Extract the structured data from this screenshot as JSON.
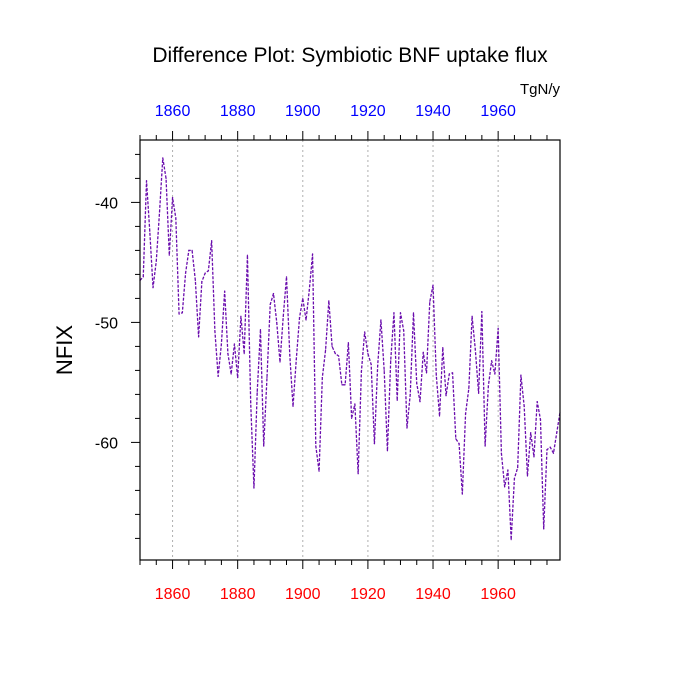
{
  "chart_data": {
    "type": "line",
    "title": "Difference Plot: Symbiotic BNF uptake flux",
    "units": "TgN/y",
    "ylabel": "NFIX",
    "xlabel": "",
    "xlim": [
      1850,
      1979
    ],
    "ylim": [
      -69.8,
      -34.8
    ],
    "grid": "vertical dotted lines at major x ticks",
    "x_ticks": [
      1860,
      1880,
      1900,
      1920,
      1940,
      1960
    ],
    "x_tick_labels": [
      "1860",
      "1880",
      "1900",
      "1920",
      "1940",
      "1960"
    ],
    "y_ticks": [
      -40,
      -50,
      -60
    ],
    "y_tick_labels": [
      "-40",
      "-50",
      "-60"
    ],
    "top_axis_color": "#0000ff",
    "bottom_axis_color": "#ff0000",
    "series": [
      {
        "color": "#6a0dad",
        "line_style": "dashed",
        "x": [
          1850,
          1851,
          1852,
          1853,
          1854,
          1855,
          1856,
          1857,
          1858,
          1859,
          1860,
          1861,
          1862,
          1863,
          1864,
          1865,
          1866,
          1867,
          1868,
          1869,
          1870,
          1871,
          1872,
          1873,
          1874,
          1875,
          1876,
          1877,
          1878,
          1879,
          1880,
          1881,
          1882,
          1883,
          1884,
          1885,
          1886,
          1887,
          1888,
          1889,
          1890,
          1891,
          1892,
          1893,
          1894,
          1895,
          1896,
          1897,
          1898,
          1899,
          1900,
          1901,
          1902,
          1903,
          1904,
          1905,
          1906,
          1907,
          1908,
          1909,
          1910,
          1911,
          1912,
          1913,
          1914,
          1915,
          1916,
          1917,
          1918,
          1919,
          1920,
          1921,
          1922,
          1923,
          1924,
          1925,
          1926,
          1927,
          1928,
          1929,
          1930,
          1931,
          1932,
          1933,
          1934,
          1935,
          1936,
          1937,
          1938,
          1939,
          1940,
          1941,
          1942,
          1943,
          1944,
          1945,
          1946,
          1947,
          1948,
          1949,
          1950,
          1951,
          1952,
          1953,
          1954,
          1955,
          1956,
          1957,
          1958,
          1959,
          1960,
          1961,
          1962,
          1963,
          1964,
          1965,
          1966,
          1967,
          1968,
          1969,
          1970,
          1971,
          1972,
          1973,
          1974,
          1975,
          1976,
          1977,
          1978,
          1979
        ],
        "values": [
          -46.5,
          -46.2,
          -38.2,
          -42.4,
          -47.1,
          -44.9,
          -40.8,
          -36.3,
          -38.0,
          -44.4,
          -39.6,
          -41.3,
          -49.3,
          -49.2,
          -45.9,
          -44.0,
          -44.0,
          -46.5,
          -51.2,
          -46.6,
          -45.9,
          -45.7,
          -43.2,
          -50.7,
          -54.5,
          -51.8,
          -47.4,
          -52.6,
          -54.3,
          -51.8,
          -54.6,
          -49.5,
          -52.6,
          -44.4,
          -56.7,
          -63.8,
          -55.8,
          -50.6,
          -60.3,
          -54.6,
          -48.5,
          -47.6,
          -50.0,
          -53.3,
          -49.5,
          -46.2,
          -52.7,
          -57.0,
          -53.1,
          -49.6,
          -48.0,
          -49.8,
          -47.3,
          -44.3,
          -60.3,
          -62.4,
          -54.6,
          -52.3,
          -48.2,
          -52.0,
          -52.6,
          -52.8,
          -55.2,
          -55.2,
          -51.7,
          -58.0,
          -56.8,
          -62.6,
          -54.1,
          -50.8,
          -52.6,
          -53.5,
          -60.1,
          -53.6,
          -49.8,
          -54.0,
          -60.7,
          -53.2,
          -49.2,
          -56.5,
          -49.2,
          -50.7,
          -58.8,
          -56.0,
          -49.2,
          -55.1,
          -56.6,
          -52.5,
          -54.2,
          -48.3,
          -46.9,
          -54.4,
          -57.8,
          -52.1,
          -56.1,
          -54.3,
          -54.2,
          -59.7,
          -60.1,
          -64.3,
          -57.6,
          -55.5,
          -49.5,
          -52.3,
          -55.9,
          -49.1,
          -60.3,
          -55.3,
          -53.2,
          -54.3,
          -50.5,
          -60.9,
          -63.7,
          -62.3,
          -68.1,
          -63.0,
          -62.1,
          -54.4,
          -57.0,
          -62.8,
          -59.2,
          -61.2,
          -56.6,
          -58.1,
          -67.2,
          -60.6,
          -60.4,
          -60.9,
          -59.2,
          -57.5
        ]
      }
    ]
  }
}
